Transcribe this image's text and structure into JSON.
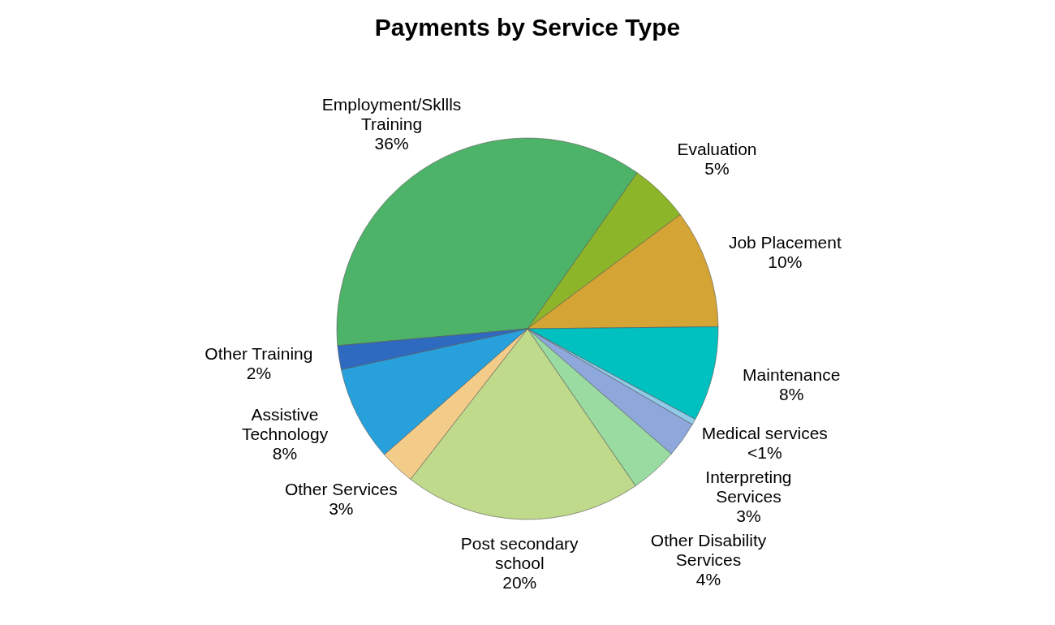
{
  "chart_data": {
    "type": "pie",
    "title": "Payments by Service Type",
    "categories": [
      "Employment/Skllls Training",
      "Evaluation",
      "Job Placement",
      "Maintenance",
      "Medical services",
      "Interpreting Services",
      "Other Disability Services",
      "Post secondary school",
      "Other Services",
      "Assistive Technology",
      "Other Training"
    ],
    "values": [
      36,
      5,
      10,
      8,
      0.5,
      3,
      4,
      20,
      3,
      8,
      2
    ],
    "value_labels": [
      "36%",
      "5%",
      "10%",
      "8%",
      "<1%",
      "3%",
      "4%",
      "20%",
      "3%",
      "8%",
      "2%"
    ],
    "colors": [
      "#4db368",
      "#8db52a",
      "#d4a535",
      "#00c0c0",
      "#8ecbe8",
      "#8fa8dc",
      "#99dba0",
      "#bfda8a",
      "#f4cc8a",
      "#27a0dc",
      "#2e6bc0"
    ],
    "legend": false
  }
}
